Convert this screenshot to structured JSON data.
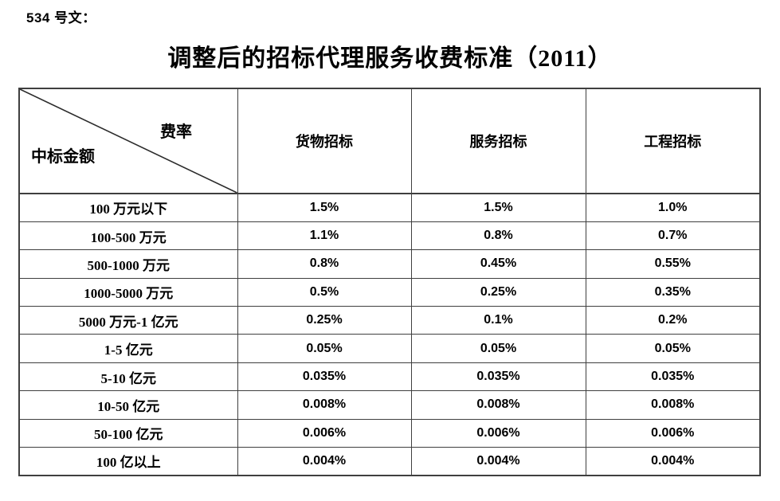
{
  "doc": {
    "doc_number": "534 号文：",
    "title": "调整后的招标代理服务收费标准（2011）"
  },
  "table": {
    "corner": {
      "top_right": "费率",
      "bottom_left": "中标金额"
    },
    "columns": [
      "货物招标",
      "服务招标",
      "工程招标"
    ],
    "rows": [
      {
        "label": "100 万元以下",
        "values": [
          "1.5%",
          "1.5%",
          "1.0%"
        ]
      },
      {
        "label": "100-500 万元",
        "values": [
          "1.1%",
          "0.8%",
          "0.7%"
        ]
      },
      {
        "label": "500-1000 万元",
        "values": [
          "0.8%",
          "0.45%",
          "0.55%"
        ]
      },
      {
        "label": "1000-5000 万元",
        "values": [
          "0.5%",
          "0.25%",
          "0.35%"
        ]
      },
      {
        "label": "5000 万元-1 亿元",
        "values": [
          "0.25%",
          "0.1%",
          "0.2%"
        ]
      },
      {
        "label": "1-5 亿元",
        "values": [
          "0.05%",
          "0.05%",
          "0.05%"
        ]
      },
      {
        "label": "5-10 亿元",
        "values": [
          "0.035%",
          "0.035%",
          "0.035%"
        ]
      },
      {
        "label": "10-50 亿元",
        "values": [
          "0.008%",
          "0.008%",
          "0.008%"
        ]
      },
      {
        "label": "50-100 亿元",
        "values": [
          "0.006%",
          "0.006%",
          "0.006%"
        ]
      },
      {
        "label": "100 亿以上",
        "values": [
          "0.004%",
          "0.004%",
          "0.004%"
        ]
      }
    ]
  },
  "colors": {
    "background": "#ffffff",
    "text": "#000000",
    "border": "#3f3f3f"
  }
}
